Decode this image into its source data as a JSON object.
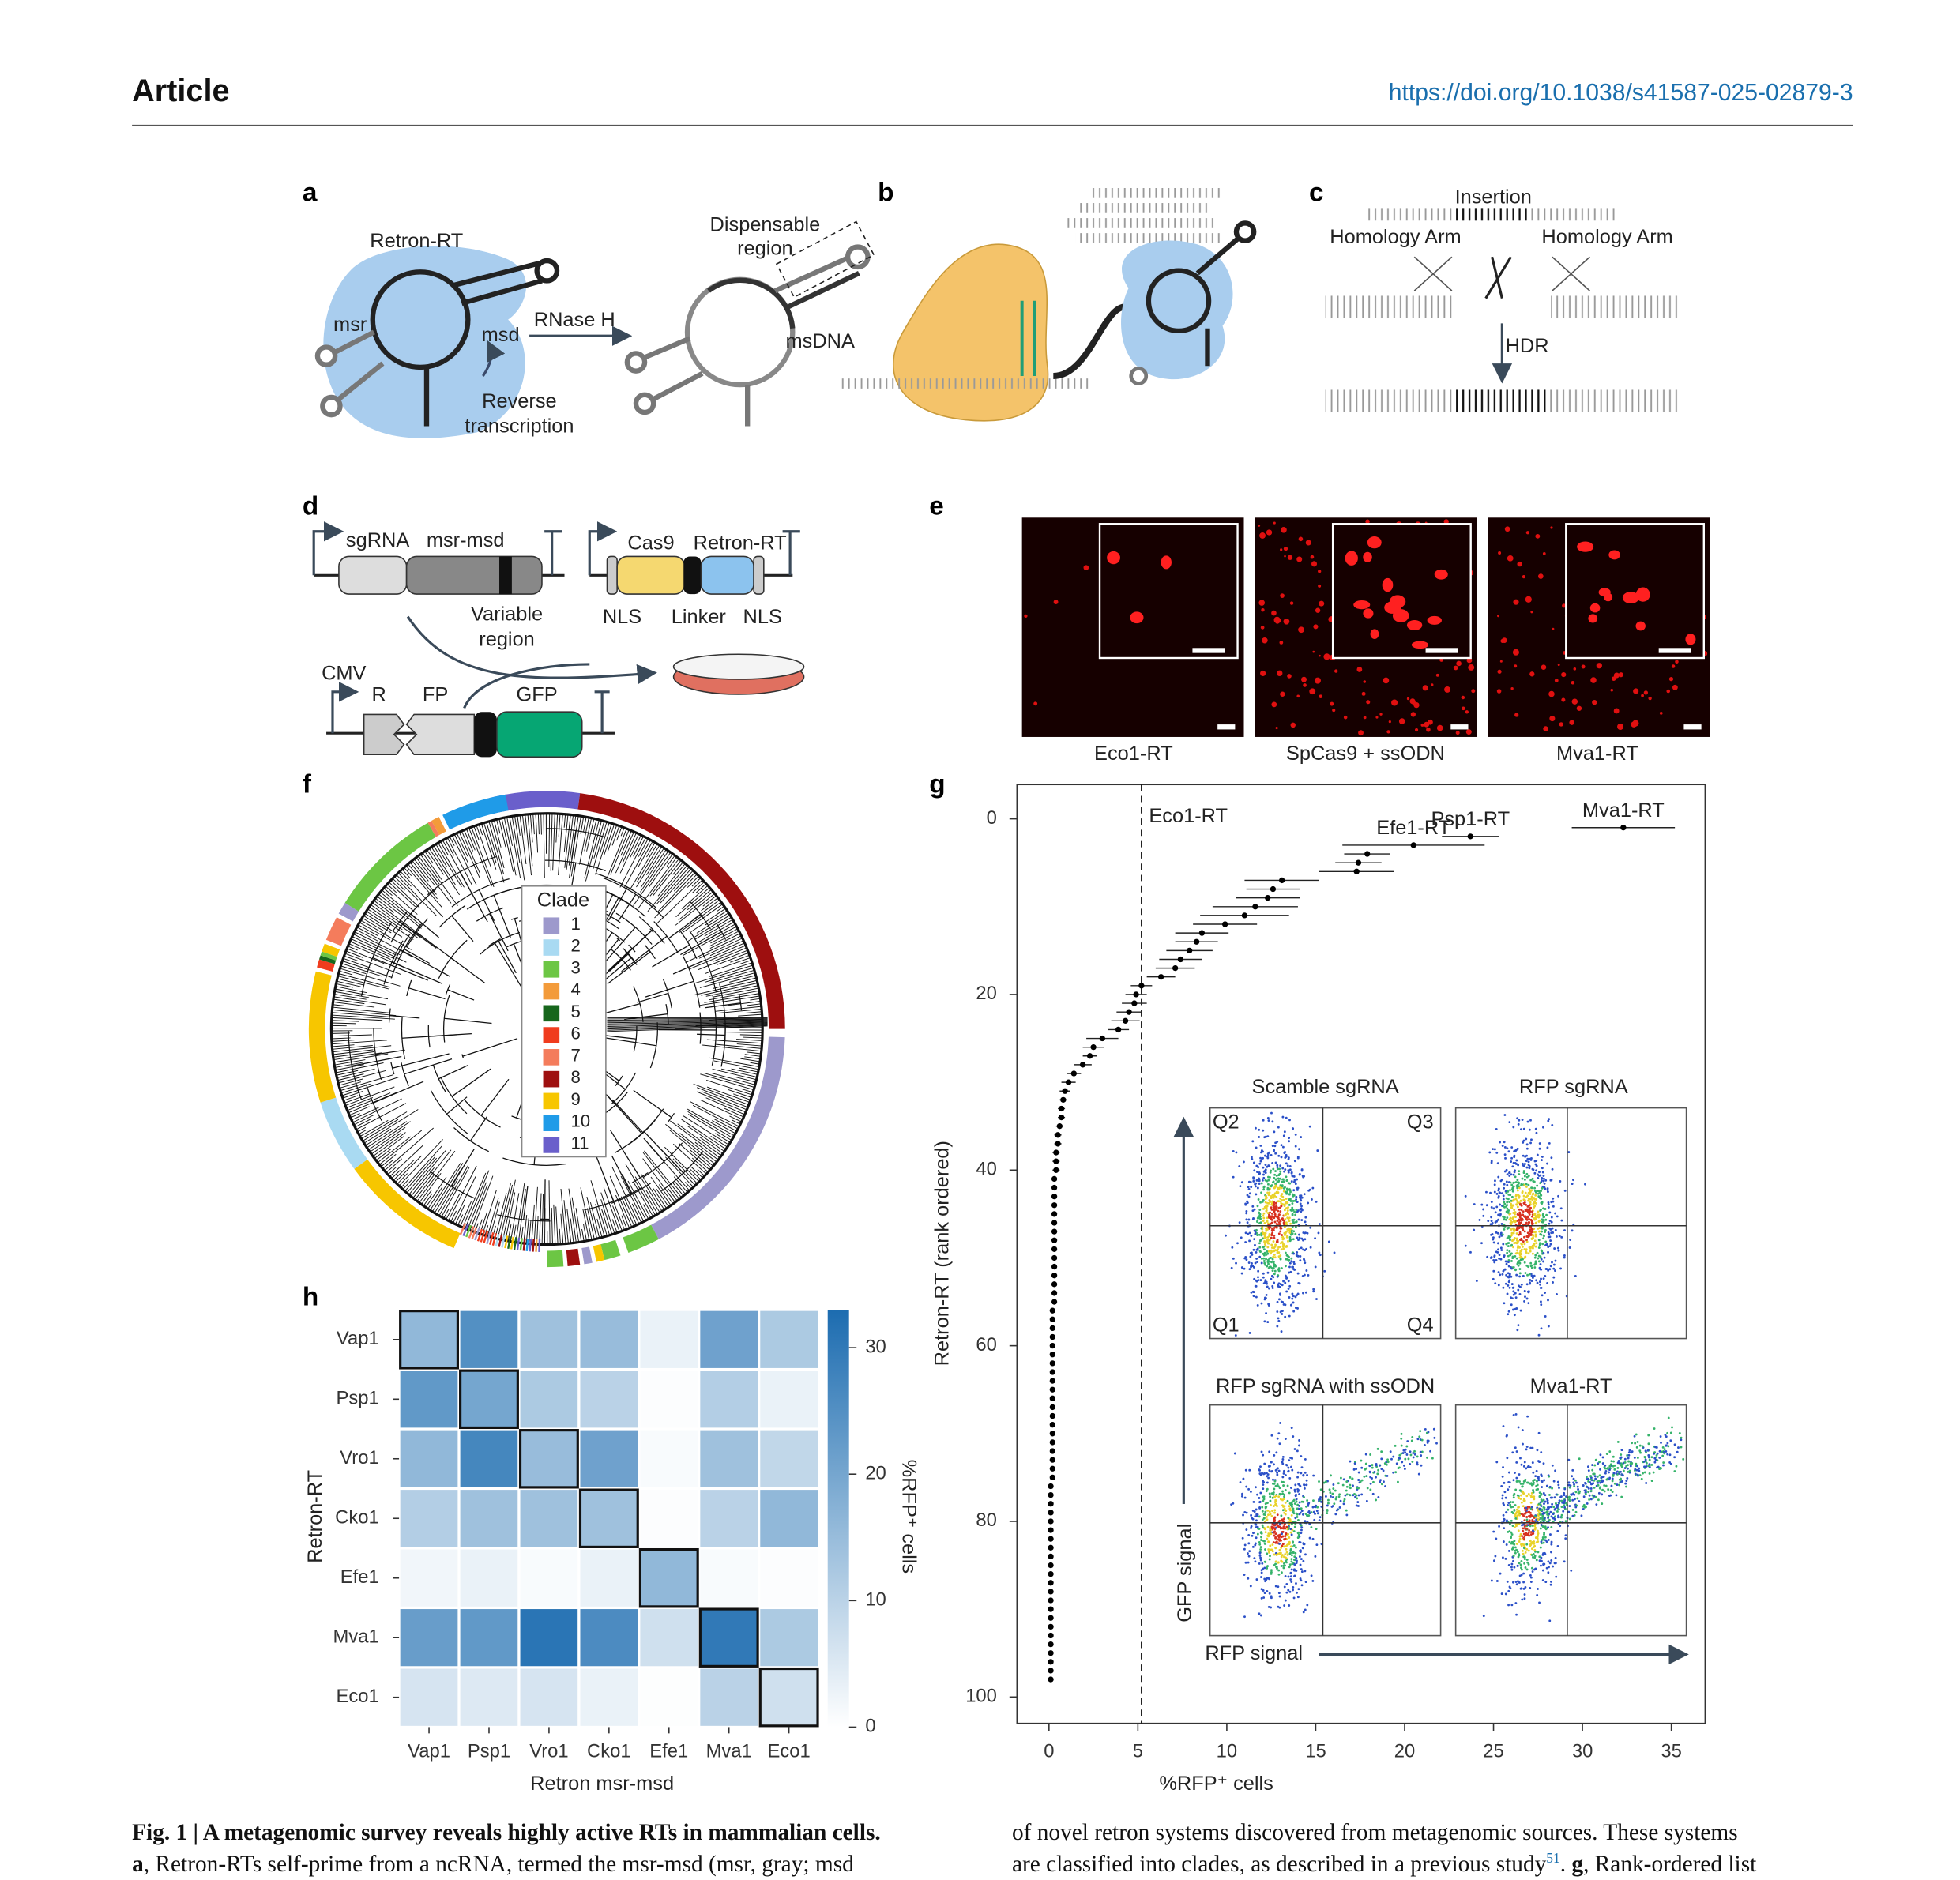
{
  "header": {
    "section": "Article",
    "doi": "https://doi.org/10.1038/s41587-025-02879-3"
  },
  "panel_labels": [
    "a",
    "b",
    "c",
    "d",
    "e",
    "f",
    "g",
    "h"
  ],
  "panel_a": [
    "Retron-RT",
    "msr",
    "msd",
    "RNase H",
    "Dispensable",
    "region",
    "msDNA",
    "Reverse",
    "transcription"
  ],
  "panel_c": [
    "Insertion",
    "Homology Arm",
    "Homology Arm",
    "HDR"
  ],
  "panel_d": [
    "sgRNA",
    "msr-msd",
    "Cas9",
    "Retron-RT",
    "Variable",
    "region",
    "NLS",
    "Linker",
    "NLS",
    "CMV",
    "R",
    "FP",
    "GFP"
  ],
  "panel_e": [
    "Eco1-RT",
    "SpCas9 + ssODN",
    "Mva1-RT"
  ],
  "panel_f": {
    "legend_title": "Clade",
    "clades": [
      {
        "name": "1",
        "color": "#9d99cc"
      },
      {
        "name": "2",
        "color": "#a9daf2"
      },
      {
        "name": "3",
        "color": "#6cc644"
      },
      {
        "name": "4",
        "color": "#f39b3a"
      },
      {
        "name": "5",
        "color": "#17661c"
      },
      {
        "name": "6",
        "color": "#f03c1e"
      },
      {
        "name": "7",
        "color": "#f47c5c"
      },
      {
        "name": "8",
        "color": "#9e0f0f"
      },
      {
        "name": "9",
        "color": "#f7c600"
      },
      {
        "name": "10",
        "color": "#1f9be8"
      },
      {
        "name": "11",
        "color": "#6a5fcb"
      }
    ]
  },
  "chart_data": [
    {
      "type": "scatter",
      "x_label": "%RFP⁺ cells",
      "y_label": "Retron-RT (rank ordered)",
      "xlim": [
        -1.8,
        36.9
      ],
      "ylim": [
        -3.9,
        103
      ],
      "y_reversed": true,
      "xticks": [
        0,
        5,
        10,
        15,
        20,
        25,
        30,
        35
      ],
      "yticks": [
        0,
        20,
        40,
        60,
        80,
        100
      ],
      "vline": {
        "x": 5.2,
        "label": "Eco1-RT",
        "style": "dashed"
      },
      "series": [
        {
          "color": "#000000",
          "x": [
            32.3,
            23.7,
            20.5,
            17.9,
            17.4,
            17.3,
            13.1,
            12.6,
            12.3,
            11.6,
            11.0,
            9.9,
            8.6,
            8.3,
            7.9,
            7.4,
            7.1,
            6.3,
            5.2,
            4.9,
            4.8,
            4.5,
            4.3,
            3.9,
            3.0,
            2.5,
            2.3,
            1.9,
            1.4,
            1.1,
            0.9,
            0.8,
            0.7,
            0.7,
            0.6,
            0.5,
            0.5,
            0.4,
            0.4,
            0.4,
            0.3,
            0.3,
            0.3,
            0.3,
            0.3,
            0.3,
            0.3,
            0.3,
            0.3,
            0.3,
            0.3,
            0.3,
            0.3,
            0.3,
            0.3,
            0.2,
            0.2,
            0.2,
            0.2,
            0.2,
            0.2,
            0.2,
            0.2,
            0.2,
            0.2,
            0.2,
            0.2,
            0.2,
            0.2,
            0.2,
            0.2,
            0.2,
            0.2,
            0.2,
            0.2,
            0.1,
            0.1,
            0.1,
            0.1,
            0.1,
            0.1,
            0.1,
            0.1,
            0.1,
            0.1,
            0.1,
            0.1,
            0.1,
            0.1,
            0.1,
            0.1,
            0.1,
            0.1,
            0.1,
            0.1,
            0.1,
            0.1,
            0.1
          ],
          "y": [
            1,
            2,
            3,
            4,
            5,
            6,
            7,
            8,
            9,
            10,
            11,
            12,
            13,
            14,
            15,
            16,
            17,
            18,
            19,
            20,
            21,
            22,
            23,
            24,
            25,
            26,
            27,
            28,
            29,
            30,
            31,
            32,
            33,
            34,
            35,
            36,
            37,
            38,
            39,
            40,
            41,
            42,
            43,
            44,
            45,
            46,
            47,
            48,
            49,
            50,
            51,
            52,
            53,
            54,
            55,
            56,
            57,
            58,
            59,
            60,
            61,
            62,
            63,
            64,
            65,
            66,
            67,
            68,
            69,
            70,
            71,
            72,
            73,
            74,
            75,
            76,
            77,
            78,
            79,
            80,
            81,
            82,
            83,
            84,
            85,
            86,
            87,
            88,
            89,
            90,
            91,
            92,
            93,
            94,
            95,
            96,
            97,
            98
          ],
          "xerr": [
            2.9,
            1.6,
            4.0,
            1.3,
            1.3,
            2.1,
            2.1,
            1.5,
            1.8,
            2.4,
            2.5,
            1.8,
            1.5,
            1.2,
            1.3,
            1.2,
            1.1,
            0.8,
            0.6,
            0.6,
            0.7,
            0.7,
            0.8,
            0.6,
            0.9,
            0.6,
            0.4,
            0.5,
            0.4,
            0.4,
            0.3,
            0.2,
            0.2,
            0.2,
            0.2,
            0.2,
            0.2,
            0.2,
            0.2,
            0.2,
            0.1,
            0.1,
            0.1,
            0.1,
            0.1,
            0.1,
            0.1,
            0.1,
            0.1,
            0.1,
            0.1,
            0.1,
            0.1,
            0.1,
            0.1,
            0.1,
            0.1,
            0.1,
            0.1,
            0.1,
            0.1,
            0.1,
            0.1,
            0.1,
            0.1,
            0.1,
            0.1,
            0.1,
            0.1,
            0.1,
            0.1,
            0.1,
            0.1,
            0.1,
            0.1,
            0.1,
            0.1,
            0.1,
            0.1,
            0.1,
            0.1,
            0.1,
            0.1,
            0.1,
            0.1,
            0.1,
            0.1,
            0.1,
            0.1,
            0.1,
            0.1,
            0.1,
            0.1,
            0.1,
            0.1,
            0.1,
            0.1,
            0.1
          ],
          "labels": [
            "Mva1-RT",
            "Psp1-RT",
            "Efe1-RT",
            null,
            null,
            null,
            null,
            null,
            null,
            null,
            null,
            null,
            null,
            null,
            null,
            null,
            null,
            null,
            null,
            null,
            null,
            null,
            null,
            null,
            null,
            null,
            null,
            null,
            null,
            null,
            null,
            null,
            null,
            null,
            null,
            null,
            null,
            null,
            null,
            null,
            null,
            null,
            null,
            null,
            null,
            null,
            null,
            null,
            null,
            null,
            null,
            null,
            null,
            null,
            null,
            null,
            null,
            null,
            null,
            null,
            null,
            null,
            null,
            null,
            null,
            null,
            null,
            null,
            null,
            null,
            null,
            null,
            null,
            null,
            null,
            null,
            null,
            null,
            null,
            null,
            null,
            null,
            null,
            null,
            null,
            null,
            null,
            null,
            null,
            null,
            null,
            null,
            null,
            null,
            null,
            null,
            null,
            null
          ]
        }
      ],
      "inset": {
        "titles": [
          "Scamble sgRNA",
          "RFP sgRNA",
          "RFP sgRNA with ssODN",
          "Mva1-RT"
        ],
        "quadrants": [
          "Q2",
          "Q3",
          "Q1",
          "Q4"
        ],
        "x_label": "RFP signal",
        "y_label": "GFP signal"
      }
    },
    {
      "type": "heatmap",
      "x_label": "Retron msr-msd",
      "y_label": "Retron-RT",
      "rows": [
        "Vap1",
        "Psp1",
        "Vro1",
        "Cko1",
        "Efe1",
        "Mva1",
        "Eco1"
      ],
      "columns": [
        "Vap1",
        "Psp1",
        "Vro1",
        "Cko1",
        "Efe1",
        "Mva1",
        "Eco1"
      ],
      "values": [
        [
          16,
          25,
          14,
          15,
          3,
          21,
          12
        ],
        [
          23,
          20,
          12,
          10,
          0.5,
          11,
          3
        ],
        [
          16,
          27,
          15,
          21,
          1,
          14,
          9
        ],
        [
          11,
          14,
          14,
          14,
          0.5,
          10,
          16
        ],
        [
          2,
          3,
          1,
          3,
          16,
          1,
          0.5
        ],
        [
          22,
          23,
          31,
          26,
          7,
          30,
          12
        ],
        [
          6,
          5,
          6,
          3,
          0.3,
          10,
          7
        ]
      ],
      "highlight_diagonal": true,
      "colorbar_label": "%RFP⁺ cells",
      "clim": [
        0,
        33
      ],
      "cticks": [
        0,
        10,
        20,
        30
      ],
      "colormap": [
        "#ffffff",
        "#1c6cb0"
      ]
    }
  ],
  "caption": {
    "title": "Fig. 1 | A metagenomic survey reveals highly active RTs in mammalian cells.",
    "left_panel": "a",
    "left_text": ", Retron-RTs self-prime from a ncRNA, termed the msr-msd (msr, gray; msd",
    "right_line1": "of novel retron systems discovered from metagenomic sources. These systems",
    "right_line2a": "are classified into clades, as described in a previous study",
    "ref": "51",
    "right_line2b": ". ",
    "right_panel": "g",
    "right_line2c": ", Rank-ordered list"
  }
}
